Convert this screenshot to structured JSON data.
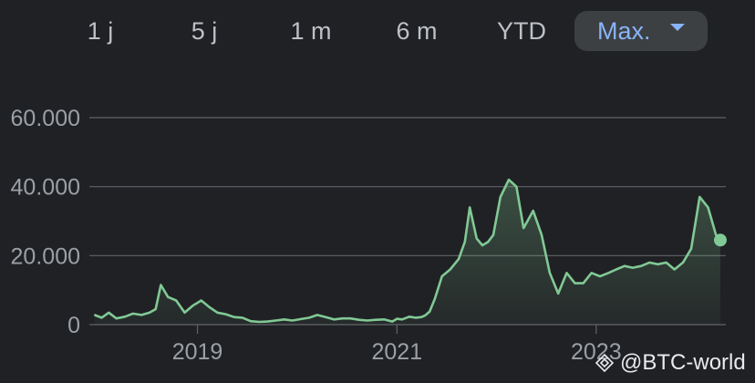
{
  "range_tabs": [
    {
      "label": "1 j"
    },
    {
      "label": "5 j"
    },
    {
      "label": "1 m"
    },
    {
      "label": "6 m"
    },
    {
      "label": "YTD"
    },
    {
      "label": "Max.",
      "selected": true
    }
  ],
  "watermark": "@BTC-world",
  "colors": {
    "background": "#202124",
    "line": "#81c995",
    "gridline": "#5f6368",
    "tick_text": "#9aa0a6",
    "selected_tab_bg": "#3c4043",
    "selected_tab_text": "#8ab4f8"
  },
  "chart_data": {
    "type": "area",
    "title": "",
    "xlabel": "",
    "ylabel": "",
    "x_ticks": [
      "2019",
      "2021",
      "2023"
    ],
    "y_ticks": [
      "0",
      "20.000",
      "40.000",
      "60.000"
    ],
    "ylim": [
      0,
      60000
    ],
    "xlim": [
      "2017-12-01",
      "2024-03-31"
    ],
    "grid": "horizontal",
    "series": [
      {
        "x": [
          "2017-12-20",
          "2018-01-15",
          "2018-02-10",
          "2018-03-10",
          "2018-04-10",
          "2018-05-10",
          "2018-06-10",
          "2018-07-10",
          "2018-08-01",
          "2018-08-20",
          "2018-09-15",
          "2018-10-15",
          "2018-11-15",
          "2018-12-15",
          "2019-01-15",
          "2019-02-15",
          "2019-03-15",
          "2019-04-15",
          "2019-05-15",
          "2019-06-15",
          "2019-07-15",
          "2019-08-15",
          "2019-09-15",
          "2019-10-15",
          "2019-11-15",
          "2019-12-15",
          "2020-01-15",
          "2020-02-15",
          "2020-03-15",
          "2020-04-15",
          "2020-05-15",
          "2020-06-15",
          "2020-07-15",
          "2020-08-15",
          "2020-09-15",
          "2020-10-15",
          "2020-11-15",
          "2020-12-15",
          "2021-01-01",
          "2021-01-20",
          "2021-02-15",
          "2021-03-10",
          "2021-04-01",
          "2021-04-15",
          "2021-05-01",
          "2021-05-20",
          "2021-06-15",
          "2021-07-15",
          "2021-08-15",
          "2021-09-07",
          "2021-09-25",
          "2021-10-20",
          "2021-11-10",
          "2021-12-01",
          "2021-12-20",
          "2022-01-15",
          "2022-02-15",
          "2022-03-15",
          "2022-04-10",
          "2022-05-15",
          "2022-06-15",
          "2022-07-15",
          "2022-08-15",
          "2022-09-15",
          "2022-10-15",
          "2022-11-15",
          "2022-12-15",
          "2023-01-15",
          "2023-02-15",
          "2023-03-15",
          "2023-04-15",
          "2023-05-15",
          "2023-06-15",
          "2023-07-15",
          "2023-08-15",
          "2023-09-15",
          "2023-10-15",
          "2023-11-15",
          "2023-12-15",
          "2024-01-15",
          "2024-02-15",
          "2024-03-15"
        ],
        "y": [
          2800,
          2000,
          3500,
          1800,
          2300,
          3200,
          2800,
          3500,
          4500,
          11500,
          8000,
          7000,
          3500,
          5500,
          7000,
          5000,
          3500,
          3000,
          2200,
          2000,
          1000,
          800,
          900,
          1200,
          1500,
          1200,
          1600,
          2000,
          2800,
          2200,
          1500,
          1800,
          1800,
          1400,
          1200,
          1400,
          1500,
          900,
          1700,
          1500,
          2300,
          2000,
          2200,
          2700,
          3800,
          7500,
          14000,
          16000,
          19000,
          24000,
          34000,
          25000,
          23000,
          24000,
          26000,
          37000,
          42000,
          40000,
          28000,
          33000,
          26000,
          15000,
          9000,
          15000,
          12000,
          12000,
          15000,
          14000,
          15000,
          16000,
          17000,
          16500,
          17000,
          18000,
          17500,
          18000,
          16000,
          18000,
          22000,
          37000,
          34000,
          26000
        ]
      }
    ],
    "last_point": {
      "x": "2024-03-31",
      "y": 24500
    }
  }
}
